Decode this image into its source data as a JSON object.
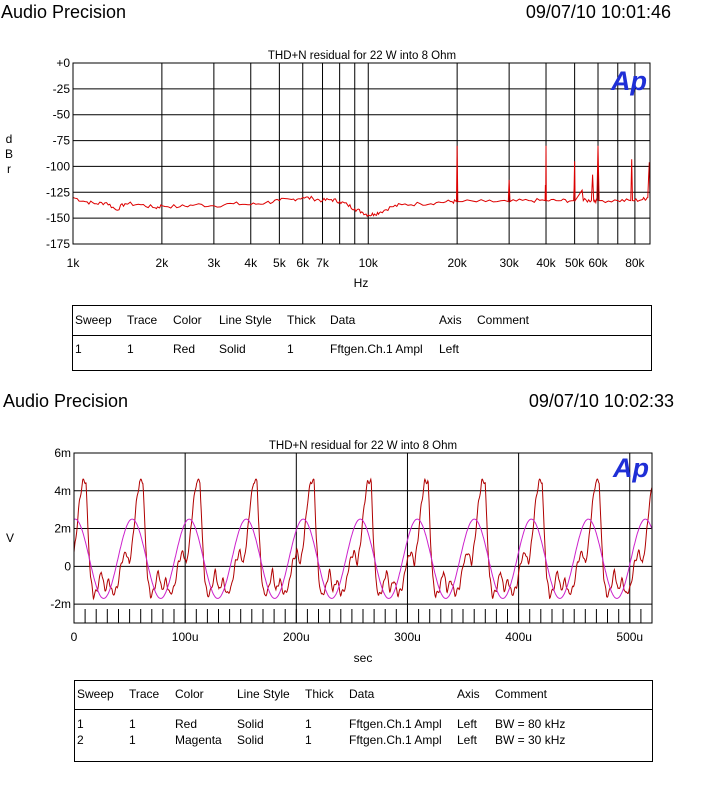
{
  "panels": [
    {
      "header_title": "Audio Precision",
      "header_time": "09/07/10 10:01:46",
      "logo": "Ap",
      "legend": {
        "headers": [
          "Sweep",
          "Trace",
          "Color",
          "Line Style",
          "Thick",
          "Data",
          "Axis",
          "Comment"
        ],
        "rows": [
          [
            "1",
            "1",
            "Red",
            "Solid",
            "1",
            "Fftgen.Ch.1 Ampl",
            "Left",
            ""
          ]
        ]
      }
    },
    {
      "header_title": "Audio Precision",
      "header_time": "09/07/10 10:02:33",
      "logo": "Ap",
      "legend": {
        "headers": [
          "Sweep",
          "Trace",
          "Color",
          "Line Style",
          "Thick",
          "Data",
          "Axis",
          "Comment"
        ],
        "rows": [
          [
            "1",
            "1",
            "Red",
            "Solid",
            "1",
            "Fftgen.Ch.1 Ampl",
            "Left",
            "BW = 80 kHz"
          ],
          [
            "2",
            "1",
            "Magenta",
            "Solid",
            "1",
            "Fftgen.Ch.1 Ampl",
            "Left",
            "BW = 30 kHz"
          ]
        ]
      }
    }
  ],
  "chart_data": [
    {
      "type": "line",
      "title": "THD+N residual for 22 W into 8 Ohm",
      "xlabel": "Hz",
      "ylabel": "dBr",
      "x_scale": "log",
      "xlim": [
        1000,
        90000
      ],
      "ylim": [
        -175,
        0
      ],
      "yticks": [
        0,
        -25,
        -50,
        -75,
        -100,
        -125,
        -150,
        -175
      ],
      "ytick_labels": [
        "+0",
        "-25",
        "-50",
        "-75",
        "-100",
        "-125",
        "-150",
        "-175"
      ],
      "xtick_labels": [
        {
          "v": 1000,
          "t": "1k"
        },
        {
          "v": 2000,
          "t": "2k"
        },
        {
          "v": 3000,
          "t": "3k"
        },
        {
          "v": 4000,
          "t": "4k"
        },
        {
          "v": 5000,
          "t": "5k"
        },
        {
          "v": 6000,
          "t": "6k"
        },
        {
          "v": 7000,
          "t": "7k"
        },
        {
          "v": 10000,
          "t": "10k"
        },
        {
          "v": 20000,
          "t": "20k"
        },
        {
          "v": 30000,
          "t": "30k"
        },
        {
          "v": 40000,
          "t": "40k"
        },
        {
          "v": 50000,
          "t": "50k"
        },
        {
          "v": 60000,
          "t": "60k"
        },
        {
          "v": 80000,
          "t": "80k"
        }
      ],
      "grid": true,
      "series": [
        {
          "color": "#dd0000",
          "points": [
            [
              1000,
              -130
            ],
            [
              1100,
              -134
            ],
            [
              1200,
              -136
            ],
            [
              1300,
              -135
            ],
            [
              1400,
              -142
            ],
            [
              1500,
              -136
            ],
            [
              1700,
              -137
            ],
            [
              1900,
              -140
            ],
            [
              2000,
              -138
            ],
            [
              2300,
              -139
            ],
            [
              2600,
              -137
            ],
            [
              3000,
              -138
            ],
            [
              3500,
              -136
            ],
            [
              4000,
              -137
            ],
            [
              4500,
              -135
            ],
            [
              5000,
              -133
            ],
            [
              5500,
              -132
            ],
            [
              6000,
              -130
            ],
            [
              6500,
              -131
            ],
            [
              7000,
              -133
            ],
            [
              7500,
              -132
            ],
            [
              8000,
              -134
            ],
            [
              8500,
              -137
            ],
            [
              9000,
              -141
            ],
            [
              9500,
              -144
            ],
            [
              10000,
              -147
            ],
            [
              10500,
              -146
            ],
            [
              11000,
              -144
            ],
            [
              12000,
              -139
            ],
            [
              13000,
              -137
            ],
            [
              15000,
              -136
            ],
            [
              17000,
              -135
            ],
            [
              19000,
              -134
            ],
            [
              19900,
              -134
            ],
            [
              20000,
              -80
            ],
            [
              20100,
              -134
            ],
            [
              25000,
              -134
            ],
            [
              29800,
              -134
            ],
            [
              30000,
              -113
            ],
            [
              30200,
              -134
            ],
            [
              35000,
              -133
            ],
            [
              39700,
              -133
            ],
            [
              39800,
              -118
            ],
            [
              39900,
              -133
            ],
            [
              40000,
              -80
            ],
            [
              40100,
              -133
            ],
            [
              45000,
              -133
            ],
            [
              49600,
              -133
            ],
            [
              49800,
              -121
            ],
            [
              50000,
              -95
            ],
            [
              50200,
              -133
            ],
            [
              53000,
              -123
            ],
            [
              53500,
              -133
            ],
            [
              57000,
              -133
            ],
            [
              57500,
              -108
            ],
            [
              58000,
              -133
            ],
            [
              59500,
              -133
            ],
            [
              60000,
              -80
            ],
            [
              60500,
              -133
            ],
            [
              70000,
              -133
            ],
            [
              77500,
              -133
            ],
            [
              78000,
              -93
            ],
            [
              78500,
              -133
            ],
            [
              85000,
              -132
            ],
            [
              88500,
              -130
            ],
            [
              89000,
              -110
            ],
            [
              89500,
              -96
            ],
            [
              90000,
              -130
            ]
          ]
        }
      ]
    },
    {
      "type": "line",
      "title": "THD+N residual for 22 W into 8 Ohm",
      "xlabel": "sec",
      "ylabel": "V",
      "xlim": [
        0,
        0.00052
      ],
      "ylim": [
        -0.003,
        0.006
      ],
      "yticks": [
        -0.002,
        0,
        0.002,
        0.004,
        0.006
      ],
      "ytick_labels": [
        "-2m",
        "0",
        "2m",
        "4m",
        "6m"
      ],
      "xtick_labels": [
        {
          "v": 0,
          "t": "0"
        },
        {
          "v": 0.0001,
          "t": "100u"
        },
        {
          "v": 0.0002,
          "t": "200u"
        },
        {
          "v": 0.0003,
          "t": "300u"
        },
        {
          "v": 0.0004,
          "t": "400u"
        },
        {
          "v": 0.0005,
          "t": "500u"
        }
      ],
      "grid": true,
      "series": [
        {
          "color": "#b00000",
          "period": 5.13e-05,
          "phase": 4.05e-05,
          "shape": [
            [
              0.0,
              0.0045
            ],
            [
              0.04,
              0.0015
            ],
            [
              0.08,
              -0.0006
            ],
            [
              0.13,
              -0.0016
            ],
            [
              0.2,
              -0.0012
            ],
            [
              0.27,
              -0.0002
            ],
            [
              0.33,
              -0.0013
            ],
            [
              0.4,
              -0.0007
            ],
            [
              0.47,
              -0.0015
            ],
            [
              0.55,
              -0.0011
            ],
            [
              0.62,
              0.0002
            ],
            [
              0.7,
              0.0008
            ],
            [
              0.76,
              0.0001
            ],
            [
              0.82,
              0.0014
            ],
            [
              0.88,
              0.0033
            ],
            [
              0.94,
              0.0045
            ],
            [
              1.0,
              0.0045
            ]
          ]
        },
        {
          "color": "#cc22cc",
          "period": 5.13e-05,
          "amplitude": 0.0021,
          "offset": 0.0004,
          "phase": 3.95e-05
        }
      ]
    }
  ]
}
